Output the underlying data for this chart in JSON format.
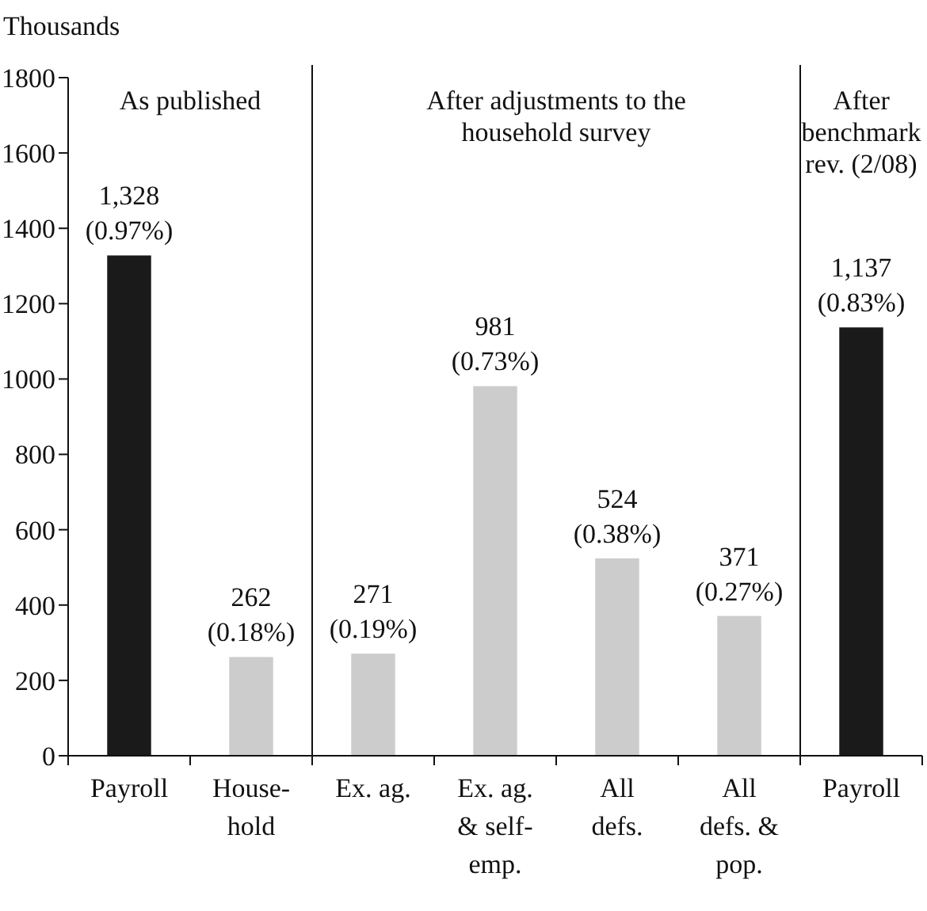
{
  "chart_data": {
    "type": "bar",
    "ylabel": "Thousands",
    "categories": [
      "Payroll",
      "House-\nhold",
      "Ex. ag.",
      "Ex. ag.\n& self-\nemp.",
      "All\ndefs.",
      "All\ndefs. &\npop.",
      "Payroll"
    ],
    "values": [
      1328,
      262,
      271,
      981,
      524,
      371,
      1137
    ],
    "colors": [
      "#1a1a1a",
      "#cccccc",
      "#cccccc",
      "#cccccc",
      "#cccccc",
      "#cccccc",
      "#1a1a1a"
    ],
    "value_labels": [
      "1,328\n(0.97%)",
      "262\n(0.18%)",
      "271\n(0.19%)",
      "981\n(0.73%)",
      "524\n(0.38%)",
      "371\n(0.27%)",
      "1,137\n(0.83%)"
    ],
    "ylim": [
      0,
      1800
    ],
    "yticks": [
      0,
      200,
      400,
      600,
      800,
      1000,
      1200,
      1400,
      1600,
      1800
    ],
    "annotations": [
      "As published",
      "After adjustments to the\nhousehold survey",
      "After\nbenchmark\nrev. (2/08)"
    ],
    "grid": false
  }
}
